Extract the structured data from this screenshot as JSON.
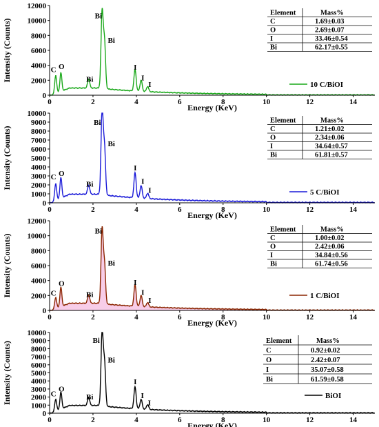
{
  "chart_data": [
    {
      "type": "line",
      "xlabel": "Energy (KeV)",
      "ylabel": "Intensity (Counts)",
      "xlim": [
        0,
        15
      ],
      "ylim": [
        0,
        12000
      ],
      "xticks": [
        "0",
        "2",
        "4",
        "6",
        "8",
        "10",
        "12",
        "14"
      ],
      "yticks": [
        "0",
        "2000",
        "4000",
        "6000",
        "8000",
        "10000",
        "12000"
      ],
      "color": "#1aa81a",
      "fill": false,
      "series": [
        {
          "name": "10 C/BiOI",
          "peaks": [
            [
              0.28,
              2400
            ],
            [
              0.52,
              2500
            ],
            [
              1.8,
              1200
            ],
            [
              2.42,
              10100
            ],
            [
              2.53,
              6200
            ],
            [
              3.94,
              2900
            ],
            [
              4.22,
              1500
            ],
            [
              4.52,
              700
            ]
          ]
        }
      ],
      "peak_labels": [
        {
          "text": "C",
          "x": 0.18,
          "y": 3100
        },
        {
          "text": "O",
          "x": 0.55,
          "y": 3500
        },
        {
          "text": "Bi",
          "x": 1.85,
          "y": 1800
        },
        {
          "text": "Bi",
          "x": 2.25,
          "y": 10300
        },
        {
          "text": "Bi",
          "x": 2.85,
          "y": 7000
        },
        {
          "text": "I",
          "x": 3.95,
          "y": 3400
        },
        {
          "text": "I",
          "x": 4.3,
          "y": 2000
        },
        {
          "text": "I",
          "x": 4.62,
          "y": 1100
        }
      ],
      "table": {
        "headers": [
          "Element",
          "Mass%"
        ],
        "rows": [
          [
            "C",
            "1.69±0.03"
          ],
          [
            "O",
            "2.69±0.07"
          ],
          [
            "I",
            "33.46±0.54"
          ],
          [
            "Bi",
            "62.17±0.55"
          ]
        ]
      }
    },
    {
      "type": "line",
      "xlabel": "Energy (KeV)",
      "ylabel": "Intensity (Counts)",
      "xlim": [
        0,
        15
      ],
      "ylim": [
        0,
        10000
      ],
      "xticks": [
        "0",
        "2",
        "4",
        "6",
        "8",
        "10",
        "12",
        "14"
      ],
      "yticks": [
        "0",
        "1000",
        "2000",
        "3000",
        "4000",
        "5000",
        "6000",
        "7000",
        "8000",
        "9000",
        "10000"
      ],
      "color": "#1a1ad8",
      "fill": false,
      "series": [
        {
          "name": "5 C/BiOI",
          "peaks": [
            [
              0.28,
              1900
            ],
            [
              0.52,
              2300
            ],
            [
              1.8,
              1000
            ],
            [
              2.42,
              9300
            ],
            [
              2.53,
              5200
            ],
            [
              3.94,
              2800
            ],
            [
              4.22,
              1400
            ],
            [
              4.52,
              600
            ]
          ]
        }
      ],
      "peak_labels": [
        {
          "text": "C",
          "x": 0.18,
          "y": 2600
        },
        {
          "text": "O",
          "x": 0.55,
          "y": 3000
        },
        {
          "text": "Bi",
          "x": 1.85,
          "y": 1800
        },
        {
          "text": "Bi",
          "x": 2.2,
          "y": 8700
        },
        {
          "text": "Bi",
          "x": 2.85,
          "y": 6300
        },
        {
          "text": "I",
          "x": 3.95,
          "y": 3600
        },
        {
          "text": "I",
          "x": 4.3,
          "y": 2100
        },
        {
          "text": "I",
          "x": 4.62,
          "y": 1100
        }
      ],
      "table": {
        "headers": [
          "Element",
          "Mass%"
        ],
        "rows": [
          [
            "C",
            "1.21±0.02"
          ],
          [
            "O",
            "2.34±0.06"
          ],
          [
            "I",
            "34.64±0.57"
          ],
          [
            "Bi",
            "61.81±0.57"
          ]
        ]
      }
    },
    {
      "type": "area",
      "xlabel": "Energy (KeV)",
      "ylabel": "Intensity (Counts)",
      "xlim": [
        0,
        15
      ],
      "ylim": [
        0,
        12000
      ],
      "xticks": [
        "0",
        "2",
        "4",
        "6",
        "8",
        "10",
        "12",
        "14"
      ],
      "yticks": [
        "0",
        "2000",
        "4000",
        "6000",
        "8000",
        "10000",
        "12000"
      ],
      "color": "#8b2500",
      "fill": true,
      "fill_color": "#f7c8e6",
      "series": [
        {
          "name": "1 C/BiOI",
          "peaks": [
            [
              0.28,
              1500
            ],
            [
              0.52,
              2600
            ],
            [
              1.8,
              1100
            ],
            [
              2.42,
              9800
            ],
            [
              2.53,
              5200
            ],
            [
              3.94,
              2900
            ],
            [
              4.22,
              1500
            ],
            [
              4.52,
              600
            ]
          ]
        }
      ],
      "peak_labels": [
        {
          "text": "C",
          "x": 0.18,
          "y": 2000
        },
        {
          "text": "O",
          "x": 0.55,
          "y": 3300
        },
        {
          "text": "Bi",
          "x": 1.85,
          "y": 1800
        },
        {
          "text": "Bi",
          "x": 2.25,
          "y": 10300
        },
        {
          "text": "Bi",
          "x": 2.85,
          "y": 6000
        },
        {
          "text": "I",
          "x": 3.95,
          "y": 3400
        },
        {
          "text": "I",
          "x": 4.3,
          "y": 2100
        },
        {
          "text": "I",
          "x": 4.62,
          "y": 1000
        }
      ],
      "table": {
        "headers": [
          "Element",
          "Mass%"
        ],
        "rows": [
          [
            "C",
            "1.00±0.02"
          ],
          [
            "O",
            "2.42±0.06"
          ],
          [
            "I",
            "34.84±0.56"
          ],
          [
            "Bi",
            "61.74±0.56"
          ]
        ]
      }
    },
    {
      "type": "line",
      "xlabel": "Energy (KeV)",
      "ylabel": "Intensity (Counts)",
      "xlim": [
        0,
        15
      ],
      "ylim": [
        0,
        10000
      ],
      "xticks": [
        "0",
        "2",
        "4",
        "6",
        "8",
        "10",
        "12",
        "14"
      ],
      "yticks": [
        "0",
        "1000",
        "2000",
        "3000",
        "4000",
        "5000",
        "6000",
        "7000",
        "8000",
        "9000",
        "10000"
      ],
      "color": "#000000",
      "fill": false,
      "series": [
        {
          "name": "BiOI",
          "peaks": [
            [
              0.28,
              1500
            ],
            [
              0.52,
              2100
            ],
            [
              1.8,
              1000
            ],
            [
              2.42,
              9000
            ],
            [
              2.53,
              5300
            ],
            [
              3.94,
              2700
            ],
            [
              4.22,
              1200
            ],
            [
              4.52,
              600
            ]
          ]
        }
      ],
      "peak_labels": [
        {
          "text": "C",
          "x": 0.18,
          "y": 2100
        },
        {
          "text": "O",
          "x": 0.55,
          "y": 2700
        },
        {
          "text": "Bi",
          "x": 1.85,
          "y": 1700
        },
        {
          "text": "Bi",
          "x": 2.15,
          "y": 8700
        },
        {
          "text": "Bi",
          "x": 2.85,
          "y": 6300
        },
        {
          "text": "I",
          "x": 3.95,
          "y": 3600
        },
        {
          "text": "I",
          "x": 4.28,
          "y": 1900
        },
        {
          "text": "I",
          "x": 4.6,
          "y": 1000
        }
      ],
      "table": {
        "headers": [
          "Element",
          "Mass%"
        ],
        "rows": [
          [
            "C",
            "0.92±0.02"
          ],
          [
            "O",
            "2.42±0.07"
          ],
          [
            "I",
            "35.07±0.58"
          ],
          [
            "Bi",
            "61.59±0.58"
          ]
        ]
      }
    }
  ]
}
